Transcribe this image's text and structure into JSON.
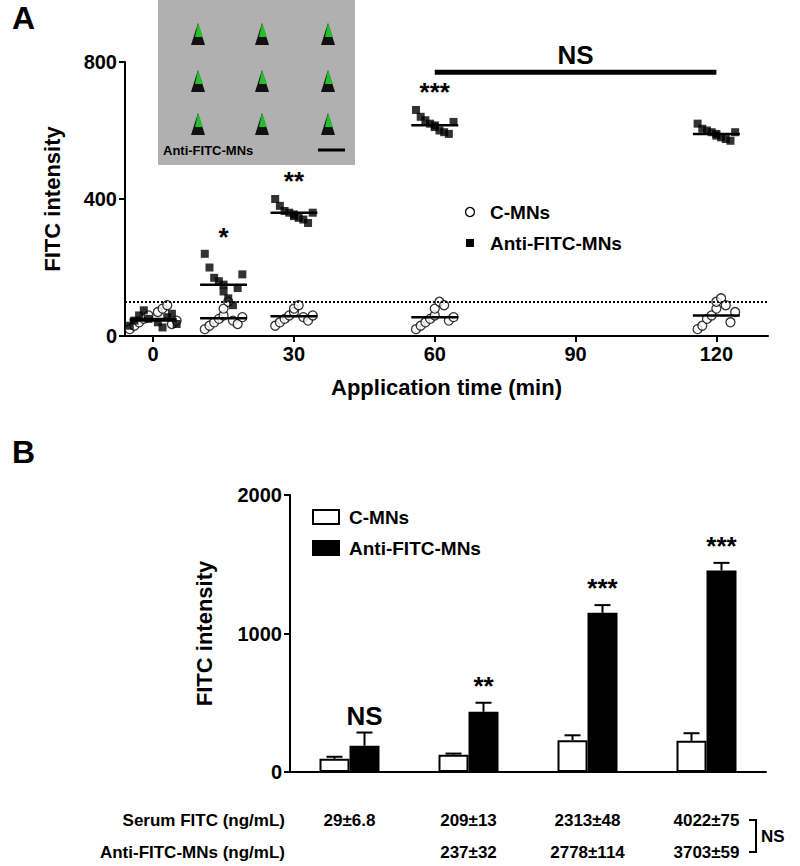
{
  "chart_data": [
    {
      "type": "scatter",
      "title": "A",
      "x_label": "Application time (min)",
      "y_label": "FITC intensity",
      "xlim": [
        -6,
        131
      ],
      "xticks": [
        0,
        30,
        60,
        90,
        120
      ],
      "ylim": [
        0,
        800
      ],
      "yticks": [
        0,
        400,
        800
      ],
      "legend": "right",
      "threshold": 100,
      "inset_label": "Anti-FITC-MNs",
      "series": [
        {
          "name": "C-MNs",
          "color": "#000000",
          "marker": "open circle",
          "x": [
            -5,
            -4,
            -3,
            -2,
            -1,
            1,
            2,
            3,
            4,
            5,
            11,
            12,
            13,
            14,
            15,
            15,
            16,
            17,
            18,
            19,
            26,
            27,
            28,
            29,
            30,
            30,
            31,
            32,
            33,
            34,
            56,
            57,
            58,
            59,
            60,
            60,
            61,
            62,
            63,
            64,
            116,
            117,
            118,
            119,
            120,
            120,
            121,
            122,
            123,
            124
          ],
          "values": [
            20,
            30,
            40,
            50,
            60,
            70,
            80,
            90,
            35,
            45,
            20,
            30,
            40,
            50,
            60,
            80,
            100,
            45,
            35,
            55,
            30,
            40,
            50,
            60,
            70,
            80,
            90,
            55,
            45,
            60,
            20,
            30,
            40,
            50,
            60,
            80,
            100,
            90,
            45,
            55,
            20,
            30,
            50,
            60,
            80,
            100,
            110,
            90,
            40,
            70
          ],
          "means": {
            "x": [
              0,
              15,
              30,
              60,
              120
            ],
            "values": [
              50,
              52,
              58,
              55,
              60
            ]
          }
        },
        {
          "name": "Anti-FITC-MNs",
          "color": "#000000",
          "marker": "square",
          "x": [
            -5,
            -4,
            -3,
            -2,
            -1,
            1,
            2,
            3,
            4,
            5,
            11,
            12,
            13,
            14,
            15,
            15,
            16,
            17,
            18,
            19,
            26,
            27,
            28,
            29,
            30,
            30,
            31,
            32,
            33,
            34,
            56,
            57,
            58,
            59,
            60,
            60,
            61,
            62,
            63,
            64,
            116,
            117,
            118,
            119,
            120,
            120,
            121,
            122,
            123,
            124
          ],
          "values": [
            30,
            45,
            60,
            75,
            50,
            40,
            25,
            55,
            65,
            35,
            240,
            200,
            170,
            160,
            150,
            130,
            110,
            90,
            140,
            180,
            400,
            380,
            365,
            360,
            355,
            350,
            345,
            340,
            330,
            360,
            660,
            640,
            630,
            620,
            615,
            610,
            600,
            595,
            590,
            625,
            620,
            605,
            600,
            595,
            590,
            585,
            580,
            575,
            570,
            595
          ],
          "means": {
            "x": [
              0,
              15,
              30,
              60,
              120
            ],
            "values": [
              45,
              150,
              360,
              615,
              590
            ]
          }
        }
      ],
      "annotations": [
        {
          "text": "*",
          "x": 15,
          "y": 250
        },
        {
          "text": "**",
          "x": 30,
          "y": 415
        },
        {
          "text": "***",
          "x": 60,
          "y": 675
        },
        {
          "text": "NS",
          "x": [
            60,
            120
          ],
          "y": 770
        }
      ]
    },
    {
      "type": "bar",
      "title": "B",
      "y_label": "FITC intensity",
      "categories": [
        null,
        null,
        null,
        null
      ],
      "ylim": [
        0,
        2000
      ],
      "yticks": [
        0,
        1000,
        2000
      ],
      "legend": "upper left",
      "series": [
        {
          "name": "C-MNs",
          "color": "#ffffff",
          "values": [
            95,
            125,
            230,
            225
          ],
          "errors": [
            15,
            8,
            35,
            55
          ]
        },
        {
          "name": "Anti-FITC-MNs",
          "color": "#000000",
          "values": [
            190,
            435,
            1150,
            1455
          ],
          "errors": [
            95,
            65,
            55,
            55
          ],
          "significance": [
            "NS",
            "**",
            "***",
            "***"
          ]
        }
      ],
      "table": {
        "rows": [
          {
            "label": "Serum FITC (ng/mL)",
            "cells": [
              "29±6.8",
              "209±13",
              "2313±48",
              "4022±75"
            ]
          },
          {
            "label": "Anti-FITC-MNs (ng/mL)",
            "cells": [
              null,
              "237±32",
              "2778±114",
              "3703±59"
            ]
          }
        ],
        "bracket": "NS"
      }
    }
  ]
}
